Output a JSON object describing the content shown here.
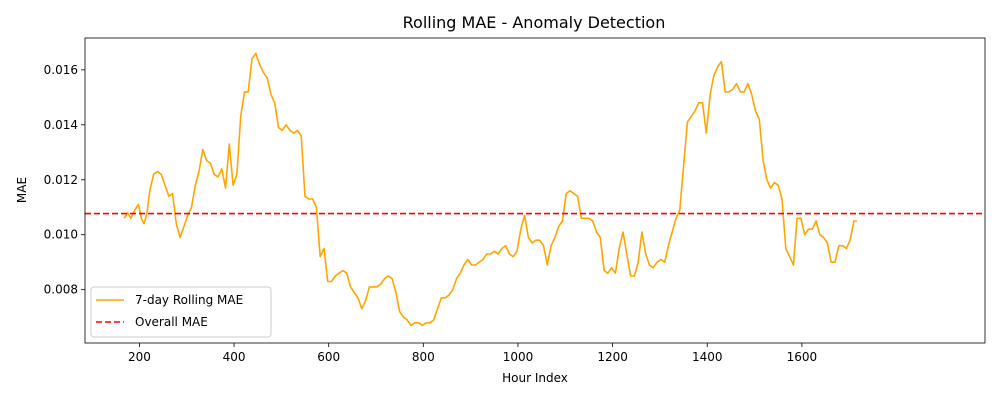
{
  "chart_data": {
    "type": "line",
    "title": "Rolling MAE - Anomaly Detection",
    "xlabel": "Hour Index",
    "ylabel": "MAE",
    "xlim": [
      85,
      1987
    ],
    "ylim": [
      0.00606,
      0.01716
    ],
    "x_ticks": [
      200,
      400,
      600,
      800,
      1000,
      1200,
      1400,
      1600
    ],
    "x_tick_labels": [
      "200",
      "400",
      "600",
      "800",
      "1000",
      "1200",
      "1400",
      "1600"
    ],
    "y_ticks": [
      0.008,
      0.01,
      0.012,
      0.014,
      0.016
    ],
    "y_tick_labels": [
      "0.008",
      "0.010",
      "0.012",
      "0.014",
      "0.016"
    ],
    "grid": false,
    "legend_position": "lower-left",
    "series": [
      {
        "name": "7-day Rolling MAE",
        "color": "#ffa500",
        "style": "solid",
        "x": [
          168,
          175,
          182,
          190,
          198,
          204,
          210,
          216,
          222,
          230,
          238,
          246,
          254,
          262,
          270,
          278,
          286,
          294,
          302,
          310,
          318,
          326,
          334,
          342,
          350,
          358,
          366,
          374,
          382,
          390,
          398,
          406,
          414,
          422,
          430,
          438,
          446,
          454,
          462,
          470,
          478,
          486,
          494,
          502,
          510,
          518,
          526,
          534,
          542,
          550,
          558,
          566,
          574,
          582,
          590,
          598,
          606,
          614,
          622,
          630,
          638,
          646,
          654,
          662,
          670,
          678,
          686,
          694,
          702,
          710,
          718,
          726,
          734,
          742,
          750,
          758,
          766,
          774,
          782,
          790,
          798,
          806,
          814,
          822,
          830,
          838,
          846,
          854,
          862,
          870,
          878,
          886,
          894,
          902,
          910,
          918,
          926,
          934,
          942,
          950,
          958,
          966,
          974,
          982,
          990,
          998,
          1006,
          1014,
          1022,
          1030,
          1038,
          1046,
          1054,
          1062,
          1070,
          1078,
          1086,
          1094,
          1102,
          1110,
          1118,
          1126,
          1134,
          1142,
          1150,
          1158,
          1166,
          1174,
          1182,
          1190,
          1198,
          1206,
          1214,
          1222,
          1230,
          1238,
          1246,
          1254,
          1262,
          1270,
          1278,
          1286,
          1294,
          1302,
          1310,
          1318,
          1326,
          1334,
          1342,
          1350,
          1358,
          1366,
          1374,
          1382,
          1390,
          1398,
          1406,
          1414,
          1422,
          1430,
          1438,
          1446,
          1454,
          1462,
          1470,
          1478,
          1486,
          1494,
          1502,
          1510,
          1518,
          1526,
          1534,
          1542,
          1550,
          1558,
          1566,
          1574,
          1582,
          1590,
          1598,
          1606,
          1614,
          1622,
          1630,
          1638,
          1646,
          1654,
          1662,
          1670,
          1678,
          1686,
          1694,
          1702,
          1710,
          1716
        ],
        "y": [
          0.0106,
          0.0108,
          0.0106,
          0.0109,
          0.0111,
          0.0106,
          0.0104,
          0.0108,
          0.0116,
          0.0122,
          0.0123,
          0.0122,
          0.0118,
          0.0114,
          0.0115,
          0.0104,
          0.0099,
          0.0103,
          0.0107,
          0.011,
          0.0118,
          0.0123,
          0.0131,
          0.0127,
          0.0126,
          0.0122,
          0.0121,
          0.0124,
          0.0117,
          0.0133,
          0.0118,
          0.0122,
          0.0143,
          0.0152,
          0.0152,
          0.0164,
          0.0166,
          0.0162,
          0.0159,
          0.0157,
          0.0151,
          0.0148,
          0.0139,
          0.0138,
          0.014,
          0.0138,
          0.0137,
          0.0138,
          0.0136,
          0.0114,
          0.0113,
          0.0113,
          0.011,
          0.0092,
          0.0095,
          0.0083,
          0.0083,
          0.0085,
          0.0086,
          0.0087,
          0.0086,
          0.0081,
          0.0079,
          0.0077,
          0.0073,
          0.0076,
          0.0081,
          0.0081,
          0.0081,
          0.0082,
          0.0084,
          0.0085,
          0.0084,
          0.0079,
          0.0072,
          0.007,
          0.0069,
          0.0067,
          0.0068,
          0.0068,
          0.0067,
          0.0068,
          0.0068,
          0.0069,
          0.0073,
          0.0077,
          0.0077,
          0.0078,
          0.008,
          0.0084,
          0.0086,
          0.0089,
          0.0091,
          0.0089,
          0.0089,
          0.009,
          0.0091,
          0.0093,
          0.0093,
          0.0094,
          0.0093,
          0.0095,
          0.0096,
          0.0093,
          0.0092,
          0.0094,
          0.0102,
          0.0107,
          0.0099,
          0.0097,
          0.0098,
          0.0098,
          0.0096,
          0.0089,
          0.0096,
          0.0099,
          0.0103,
          0.0105,
          0.0115,
          0.0116,
          0.0115,
          0.0114,
          0.0106,
          0.0106,
          0.0106,
          0.0105,
          0.0101,
          0.0099,
          0.0087,
          0.0086,
          0.0088,
          0.0086,
          0.0095,
          0.0101,
          0.0093,
          0.0085,
          0.0085,
          0.009,
          0.0101,
          0.0093,
          0.0089,
          0.0088,
          0.009,
          0.0091,
          0.009,
          0.0096,
          0.0101,
          0.0106,
          0.0109,
          0.0125,
          0.0141,
          0.0143,
          0.0145,
          0.0148,
          0.0148,
          0.0137,
          0.0151,
          0.0158,
          0.0161,
          0.0163,
          0.0152,
          0.0152,
          0.0153,
          0.0155,
          0.0152,
          0.0152,
          0.0155,
          0.0151,
          0.0145,
          0.0142,
          0.0127,
          0.012,
          0.0117,
          0.0119,
          0.0118,
          0.0113,
          0.0095,
          0.0092,
          0.0089,
          0.0106,
          0.0106,
          0.01,
          0.0102,
          0.0102,
          0.0105,
          0.01,
          0.0099,
          0.0097,
          0.009,
          0.009,
          0.0096,
          0.0096,
          0.0095,
          0.0098,
          0.0105,
          0.0105
        ]
      },
      {
        "name": "Overall MAE",
        "color": "#ff0000",
        "style": "dashed",
        "constant": 0.01077
      }
    ]
  }
}
